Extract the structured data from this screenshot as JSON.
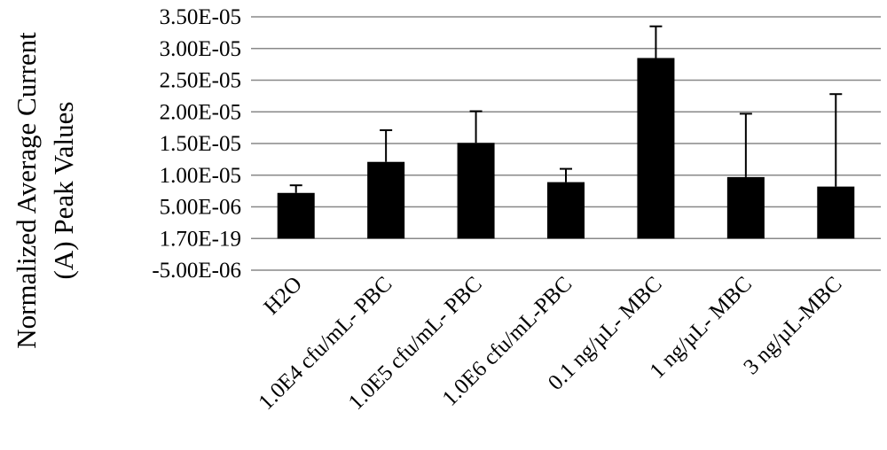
{
  "chart_data": {
    "type": "bar",
    "title": "",
    "xlabel": "",
    "ylabel": "Normalized Average Current (A) Peak Values",
    "ylabel_lines": [
      "Normalized Average Current",
      "(A) Peak Values"
    ],
    "categories": [
      "H2O",
      "1.0E4 cfu/mL- PBC",
      "1.0E5 cfu/mL- PBC",
      "1.0E6 cfu/mL-PBC",
      "0.1 ng/µL- MBC",
      "1 ng/µL- MBC",
      "3 ng/µL-MBC"
    ],
    "values": [
      7.2e-06,
      1.21e-05,
      1.51e-05,
      8.9e-06,
      2.85e-05,
      9.7e-06,
      8.2e-06
    ],
    "error_plus": [
      1.2e-06,
      5e-06,
      5e-06,
      2.1e-06,
      5e-06,
      1e-05,
      1.46e-05
    ],
    "ylim": [
      -5e-06,
      3.5e-05
    ],
    "yticks": [
      -5e-06,
      0,
      5e-06,
      1e-05,
      1.5e-05,
      2e-05,
      2.5e-05,
      3e-05,
      3.5e-05
    ],
    "ytick_labels": [
      "-5.00E-06",
      "1.70E-19",
      "5.00E-06",
      "1.00E-05",
      "1.50E-05",
      "2.00E-05",
      "2.50E-05",
      "3.00E-05",
      "3.50E-05"
    ],
    "grid": true,
    "legend": "none",
    "bar_color": "#000000",
    "grid_color": "#888888"
  }
}
